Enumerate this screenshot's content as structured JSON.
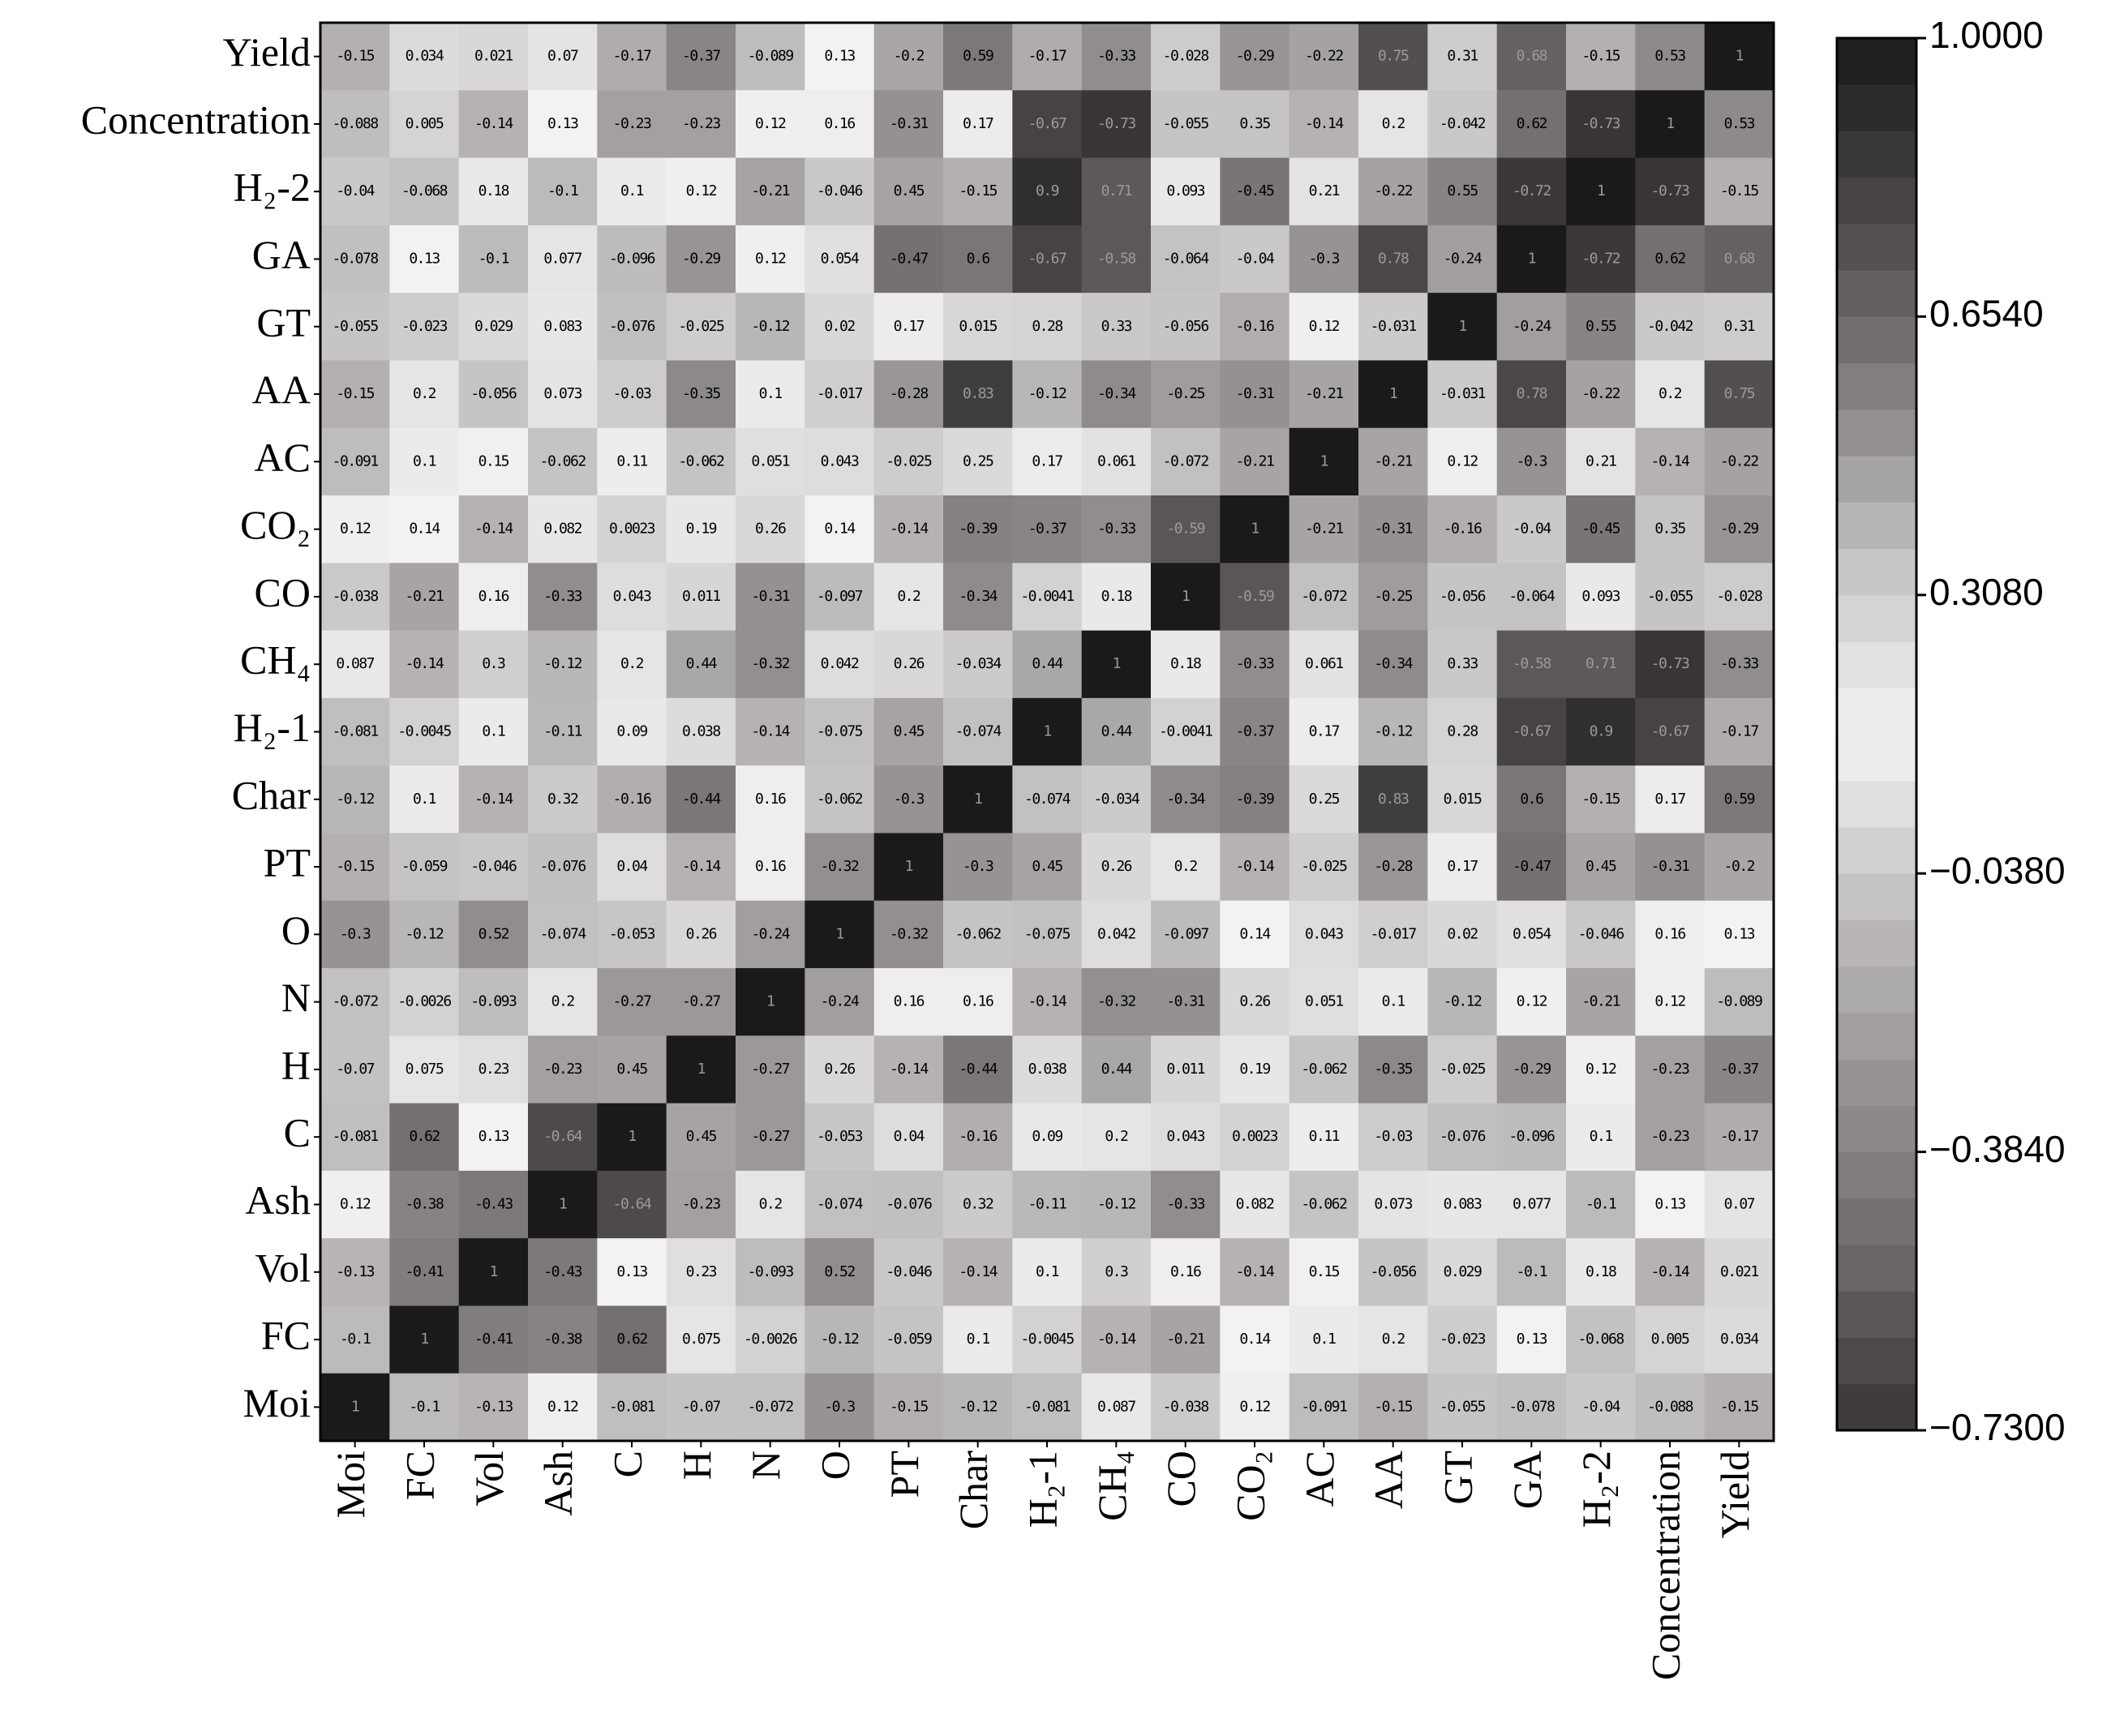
{
  "chart_data": {
    "type": "heatmap",
    "rows": [
      "Yield",
      "Concentration",
      "H₂-2",
      "GA",
      "GT",
      "AA",
      "AC",
      "CO₂",
      "CO",
      "CH₄",
      "H₂-1",
      "Char",
      "PT",
      "O",
      "N",
      "H",
      "C",
      "Ash",
      "Vol",
      "FC",
      "Moi"
    ],
    "columns": [
      "Moi",
      "FC",
      "Vol",
      "Ash",
      "C",
      "H",
      "N",
      "O",
      "PT",
      "Char",
      "H₂-1",
      "CH₄",
      "CO",
      "CO₂",
      "AC",
      "AA",
      "GT",
      "GA",
      "H₂-2",
      "Concentration",
      "Yield"
    ],
    "values": [
      [
        -0.15,
        0.034,
        0.021,
        0.07,
        -0.17,
        -0.37,
        -0.089,
        0.13,
        -0.2,
        0.59,
        -0.17,
        -0.33,
        -0.028,
        -0.29,
        -0.22,
        0.75,
        0.31,
        0.68,
        -0.15,
        0.53,
        1
      ],
      [
        -0.088,
        0.005,
        -0.14,
        0.13,
        -0.23,
        -0.23,
        0.12,
        0.16,
        -0.31,
        0.17,
        -0.67,
        -0.73,
        -0.055,
        0.35,
        -0.14,
        0.2,
        -0.042,
        0.62,
        -0.73,
        1,
        0.53
      ],
      [
        -0.04,
        -0.068,
        0.18,
        -0.1,
        0.1,
        0.12,
        -0.21,
        -0.046,
        0.45,
        -0.15,
        0.9,
        0.71,
        0.093,
        -0.45,
        0.21,
        -0.22,
        0.55,
        -0.72,
        1,
        -0.73,
        -0.15
      ],
      [
        -0.078,
        0.13,
        -0.1,
        0.077,
        -0.096,
        -0.29,
        0.12,
        0.054,
        -0.47,
        0.6,
        -0.67,
        -0.58,
        -0.064,
        -0.04,
        -0.3,
        0.78,
        -0.24,
        1,
        -0.72,
        0.62,
        0.68
      ],
      [
        -0.055,
        -0.023,
        0.029,
        0.083,
        -0.076,
        -0.025,
        -0.12,
        0.02,
        0.17,
        0.015,
        0.28,
        0.33,
        -0.056,
        -0.16,
        0.12,
        -0.031,
        1,
        -0.24,
        0.55,
        -0.042,
        0.31
      ],
      [
        -0.15,
        0.2,
        -0.056,
        0.073,
        -0.03,
        -0.35,
        0.1,
        -0.017,
        -0.28,
        0.83,
        -0.12,
        -0.34,
        -0.25,
        -0.31,
        -0.21,
        1,
        -0.031,
        0.78,
        -0.22,
        0.2,
        0.75
      ],
      [
        -0.091,
        0.1,
        0.15,
        -0.062,
        0.11,
        -0.062,
        0.051,
        0.043,
        -0.025,
        0.25,
        0.17,
        0.061,
        -0.072,
        -0.21,
        1,
        -0.21,
        0.12,
        -0.3,
        0.21,
        -0.14,
        -0.22
      ],
      [
        0.12,
        0.14,
        -0.14,
        0.082,
        0.0023,
        0.19,
        0.26,
        0.14,
        -0.14,
        -0.39,
        -0.37,
        -0.33,
        -0.59,
        1,
        -0.21,
        -0.31,
        -0.16,
        -0.04,
        -0.45,
        0.35,
        -0.29
      ],
      [
        -0.038,
        -0.21,
        0.16,
        -0.33,
        0.043,
        0.011,
        -0.31,
        -0.097,
        0.2,
        -0.34,
        -0.0041,
        0.18,
        1,
        -0.59,
        -0.072,
        -0.25,
        -0.056,
        -0.064,
        0.093,
        -0.055,
        -0.028
      ],
      [
        0.087,
        -0.14,
        0.3,
        -0.12,
        0.2,
        0.44,
        -0.32,
        0.042,
        0.26,
        -0.034,
        0.44,
        1,
        0.18,
        -0.33,
        0.061,
        -0.34,
        0.33,
        -0.58,
        0.71,
        -0.73,
        -0.33
      ],
      [
        -0.081,
        -0.0045,
        0.1,
        -0.11,
        0.09,
        0.038,
        -0.14,
        -0.075,
        0.45,
        -0.074,
        1,
        0.44,
        -0.0041,
        -0.37,
        0.17,
        -0.12,
        0.28,
        -0.67,
        0.9,
        -0.67,
        -0.17
      ],
      [
        -0.12,
        0.1,
        -0.14,
        0.32,
        -0.16,
        -0.44,
        0.16,
        -0.062,
        -0.3,
        1,
        -0.074,
        -0.034,
        -0.34,
        -0.39,
        0.25,
        0.83,
        0.015,
        0.6,
        -0.15,
        0.17,
        0.59
      ],
      [
        -0.15,
        -0.059,
        -0.046,
        -0.076,
        0.04,
        -0.14,
        0.16,
        -0.32,
        1,
        -0.3,
        0.45,
        0.26,
        0.2,
        -0.14,
        -0.025,
        -0.28,
        0.17,
        -0.47,
        0.45,
        -0.31,
        -0.2
      ],
      [
        -0.3,
        -0.12,
        0.52,
        -0.074,
        -0.053,
        0.26,
        -0.24,
        1,
        -0.32,
        -0.062,
        -0.075,
        0.042,
        -0.097,
        0.14,
        0.043,
        -0.017,
        0.02,
        0.054,
        -0.046,
        0.16,
        0.13
      ],
      [
        -0.072,
        -0.0026,
        -0.093,
        0.2,
        -0.27,
        -0.27,
        1,
        -0.24,
        0.16,
        0.16,
        -0.14,
        -0.32,
        -0.31,
        0.26,
        0.051,
        0.1,
        -0.12,
        0.12,
        -0.21,
        0.12,
        -0.089
      ],
      [
        -0.07,
        0.075,
        0.23,
        -0.23,
        0.45,
        1,
        -0.27,
        0.26,
        -0.14,
        -0.44,
        0.038,
        0.44,
        0.011,
        0.19,
        -0.062,
        -0.35,
        -0.025,
        -0.29,
        0.12,
        -0.23,
        -0.37
      ],
      [
        -0.081,
        0.62,
        0.13,
        -0.64,
        1,
        0.45,
        -0.27,
        -0.053,
        0.04,
        -0.16,
        0.09,
        0.2,
        0.043,
        0.0023,
        0.11,
        -0.03,
        -0.076,
        -0.096,
        0.1,
        -0.23,
        -0.17
      ],
      [
        0.12,
        -0.38,
        -0.43,
        1,
        -0.64,
        -0.23,
        0.2,
        -0.074,
        -0.076,
        0.32,
        -0.11,
        -0.12,
        -0.33,
        0.082,
        -0.062,
        0.073,
        0.083,
        0.077,
        -0.1,
        0.13,
        0.07
      ],
      [
        -0.13,
        -0.41,
        1,
        -0.43,
        0.13,
        0.23,
        -0.093,
        0.52,
        -0.046,
        -0.14,
        0.1,
        0.3,
        0.16,
        -0.14,
        0.15,
        -0.056,
        0.029,
        -0.1,
        0.18,
        -0.14,
        0.021
      ],
      [
        -0.1,
        1,
        -0.41,
        -0.38,
        0.62,
        0.075,
        -0.0026,
        -0.12,
        -0.059,
        0.1,
        -0.0045,
        -0.14,
        -0.21,
        0.14,
        0.1,
        0.2,
        -0.023,
        0.13,
        -0.068,
        0.005,
        0.034
      ],
      [
        1,
        -0.1,
        -0.13,
        0.12,
        -0.081,
        -0.07,
        -0.072,
        -0.3,
        -0.15,
        -0.12,
        -0.081,
        0.087,
        -0.038,
        0.12,
        -0.091,
        -0.15,
        -0.055,
        -0.078,
        -0.04,
        -0.088,
        -0.15
      ]
    ],
    "clim": [
      -0.73,
      1
    ],
    "cticks": [
      {
        "value": -0.73,
        "label": "−0.7300"
      },
      {
        "value": -0.384,
        "label": "−0.3840"
      },
      {
        "value": -0.038,
        "label": "−0.0380"
      },
      {
        "value": 0.308,
        "label": "0.3080"
      },
      {
        "value": 0.654,
        "label": "0.6540"
      },
      {
        "value": 1,
        "label": "1.0000"
      }
    ],
    "colors": [
      "#3a3535",
      "#6c6868",
      "#979393",
      "#c1bebe",
      "#f4f3f3",
      "#c6c3c3",
      "#827e7e",
      "#4a4646",
      "#1a1a1a"
    ]
  }
}
